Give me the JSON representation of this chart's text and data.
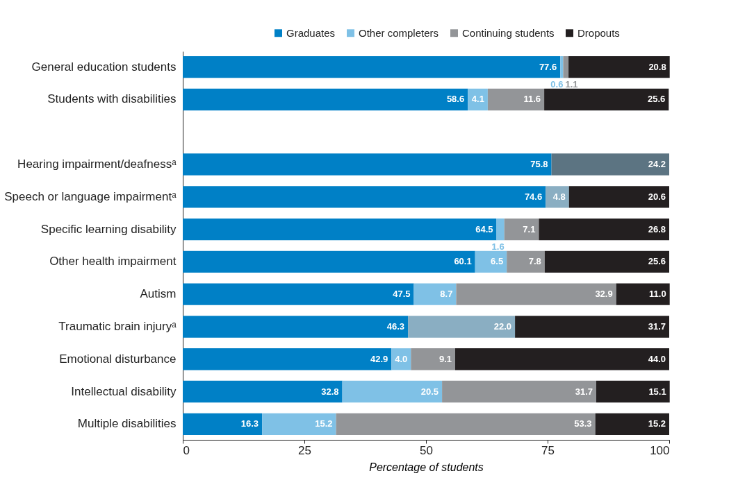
{
  "chart_data": {
    "type": "bar",
    "orientation": "horizontal",
    "stacked": true,
    "xlabel": "Percentage of students",
    "categories": [
      "General education students",
      "Students with disabilities",
      null,
      "Hearing impairment/deafnessᵃ",
      "Speech or language impairmentᵃ",
      "Specific learning disability",
      "Other health impairment",
      "Autism",
      "Traumatic brain injuryᵃ",
      "Emotional disturbance",
      "Intellectual disability",
      "Multiple disabilities"
    ],
    "series": [
      {
        "name": "Graduates",
        "color": "#0080c6",
        "values": [
          77.6,
          58.6,
          null,
          75.8,
          74.6,
          64.5,
          60.1,
          47.5,
          46.3,
          42.9,
          32.8,
          16.3
        ],
        "value_labels": [
          "77.6",
          "58.6",
          null,
          "75.8",
          "74.6",
          "64.5",
          "60.1",
          "47.5",
          "46.3",
          "42.9",
          "32.8",
          "16.3"
        ]
      },
      {
        "name": "Other completers",
        "color": "#7fc1e6",
        "values": [
          0.6,
          4.1,
          null,
          null,
          null,
          1.6,
          6.5,
          8.7,
          null,
          4.0,
          20.5,
          15.2
        ],
        "value_labels": [
          "0.6",
          "4.1",
          null,
          null,
          null,
          "1.6",
          "6.5",
          "8.7",
          null,
          "4.0",
          "20.5",
          "15.2"
        ]
      },
      {
        "color": "#8aaec2",
        "values": [
          null,
          null,
          null,
          null,
          4.8,
          null,
          null,
          null,
          22.0,
          null,
          null,
          null
        ],
        "value_labels": [
          null,
          null,
          null,
          null,
          "4.8",
          null,
          null,
          null,
          "22.0",
          null,
          null,
          null
        ]
      },
      {
        "name": "Continuing students",
        "color": "#939598",
        "values": [
          1.1,
          11.6,
          null,
          null,
          null,
          7.1,
          7.8,
          32.9,
          null,
          9.1,
          31.7,
          53.3
        ],
        "value_labels": [
          "1.1",
          "11.6",
          null,
          null,
          null,
          "7.1",
          "7.8",
          "32.9",
          null,
          "9.1",
          "31.7",
          "53.3"
        ]
      },
      {
        "name": "Dropouts",
        "color": "#231f20",
        "values": [
          20.8,
          25.6,
          null,
          null,
          20.6,
          26.8,
          25.6,
          11.0,
          31.7,
          44.0,
          15.1,
          15.2
        ],
        "value_labels": [
          "20.8",
          "25.6",
          null,
          null,
          "20.6",
          "26.8",
          "25.6",
          "11.0",
          "31.7",
          "44.0",
          "15.1",
          "15.2"
        ]
      },
      {
        "color": "#5c7482",
        "values": [
          null,
          null,
          null,
          24.2,
          null,
          null,
          null,
          null,
          null,
          null,
          null,
          null
        ],
        "value_labels": [
          null,
          null,
          null,
          "24.2",
          null,
          null,
          null,
          null,
          null,
          null,
          null,
          null
        ]
      }
    ],
    "xlim": [
      0,
      100
    ],
    "xticks": [
      0,
      25,
      50,
      75,
      100
    ],
    "grid": false,
    "legend": "top right"
  }
}
